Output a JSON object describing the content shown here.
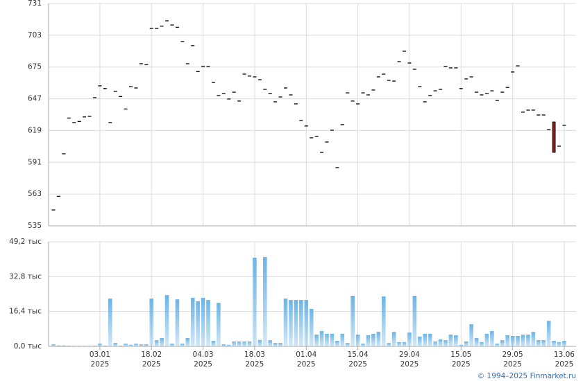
{
  "chart_data": [
    {
      "type": "dash",
      "ylim": [
        535,
        731
      ],
      "yticks": [
        535,
        563,
        591,
        619,
        647,
        675,
        703,
        731
      ],
      "grid": true,
      "series": [
        {
          "color": "#000000",
          "values": [
            549,
            561,
            598.5,
            630,
            626,
            627,
            631,
            631.5,
            648,
            658.4,
            656,
            626,
            653.5,
            649,
            638,
            657.7,
            656.5,
            677.9,
            677,
            709,
            709,
            711,
            715.7,
            712,
            710,
            697.4,
            677.9,
            693.8,
            671,
            675.4,
            675.4,
            661.4,
            649.8,
            651.6,
            646.8,
            652.8,
            645,
            668.7,
            667,
            666.3,
            663.8,
            655.3,
            651.6,
            644.3,
            648.6,
            656.5,
            650.4,
            642.5,
            627.8,
            623,
            612.6,
            613.8,
            599.7,
            608.9,
            619.3,
            586.3,
            624.2,
            652.2,
            645,
            642.5,
            652.2,
            650.4,
            654.7,
            666.3,
            668.7,
            663.2,
            662.6,
            679.7,
            688.9,
            678.5,
            673,
            657.7,
            644.3,
            649.8,
            654,
            655.3,
            675.4,
            674.2,
            674.2,
            656,
            664.5,
            666.3,
            652.8,
            650.4,
            651.6,
            654,
            645.5,
            652.8,
            657,
            670.6,
            676,
            635.2,
            637,
            637,
            632.7,
            632.7,
            619.9,
            null,
            605.2,
            623.6
          ]
        }
      ],
      "range": {
        "color": "#8b1a1a",
        "high": [
          null,
          null,
          null,
          null,
          null,
          null,
          null,
          null,
          null,
          null,
          null,
          null,
          null,
          null,
          null,
          null,
          null,
          null,
          null,
          null,
          null,
          null,
          null,
          null,
          null,
          null,
          null,
          null,
          null,
          null,
          null,
          null,
          null,
          null,
          null,
          null,
          null,
          null,
          null,
          null,
          null,
          null,
          null,
          null,
          null,
          null,
          null,
          null,
          null,
          null,
          null,
          null,
          null,
          null,
          null,
          null,
          null,
          null,
          null,
          null,
          null,
          null,
          null,
          null,
          null,
          null,
          null,
          null,
          null,
          null,
          null,
          null,
          null,
          null,
          null,
          null,
          null,
          null,
          null,
          null,
          null,
          null,
          null,
          null,
          null,
          null,
          null,
          null,
          null,
          null,
          null,
          null,
          null,
          null,
          null,
          null,
          null,
          626.6,
          null,
          null
        ],
        "low": [
          null,
          null,
          null,
          null,
          null,
          null,
          null,
          null,
          null,
          null,
          null,
          null,
          null,
          null,
          null,
          null,
          null,
          null,
          null,
          null,
          null,
          null,
          null,
          null,
          null,
          null,
          null,
          null,
          null,
          null,
          null,
          null,
          null,
          null,
          null,
          null,
          null,
          null,
          null,
          null,
          null,
          null,
          null,
          null,
          null,
          null,
          null,
          null,
          null,
          null,
          null,
          null,
          null,
          null,
          null,
          null,
          null,
          null,
          null,
          null,
          null,
          null,
          null,
          null,
          null,
          null,
          null,
          null,
          null,
          null,
          null,
          null,
          null,
          null,
          null,
          null,
          null,
          null,
          null,
          null,
          null,
          null,
          null,
          null,
          null,
          null,
          null,
          null,
          null,
          null,
          null,
          null,
          null,
          null,
          null,
          null,
          null,
          599.7,
          null,
          null
        ]
      }
    },
    {
      "type": "bar",
      "ylim": [
        0,
        49.2
      ],
      "yticks": [
        {
          "value": 0,
          "label": "0,0 тыс"
        },
        {
          "value": 16.4,
          "label": "16,4 тыс"
        },
        {
          "value": 32.8,
          "label": "32,8 тыс"
        },
        {
          "value": 49.2,
          "label": "49,2 тыс"
        }
      ],
      "grid": true,
      "color": "#6cb4e6",
      "categories": [
        null,
        null,
        null,
        null,
        null,
        null,
        null,
        null,
        null,
        [
          "03.01",
          "2025"
        ],
        null,
        null,
        null,
        null,
        null,
        null,
        null,
        null,
        null,
        [
          "18.02",
          "2025"
        ],
        null,
        null,
        null,
        null,
        null,
        null,
        null,
        null,
        null,
        [
          "04.03",
          "2025"
        ],
        null,
        null,
        null,
        null,
        null,
        null,
        null,
        null,
        null,
        [
          "18.03",
          "2025"
        ],
        null,
        null,
        null,
        null,
        null,
        null,
        null,
        null,
        null,
        [
          "01.04",
          "2025"
        ],
        null,
        null,
        null,
        null,
        null,
        null,
        null,
        null,
        null,
        [
          "15.04",
          "2025"
        ],
        null,
        null,
        null,
        null,
        null,
        null,
        null,
        null,
        null,
        [
          "29.04",
          "2025"
        ],
        null,
        null,
        null,
        null,
        null,
        null,
        null,
        null,
        null,
        [
          "15.05",
          "2025"
        ],
        null,
        null,
        null,
        null,
        null,
        null,
        null,
        null,
        null,
        [
          "29.05",
          "2025"
        ],
        null,
        null,
        null,
        null,
        null,
        null,
        null,
        null,
        null,
        [
          "13.06",
          "2025"
        ]
      ],
      "values": [
        1,
        0.4,
        0.4,
        0.3,
        0.3,
        0.3,
        0.3,
        0.3,
        0.3,
        1.3,
        0.3,
        22.5,
        1.6,
        0.3,
        1.3,
        0.7,
        1.3,
        1,
        1,
        22.5,
        2.9,
        3.9,
        24.1,
        1.3,
        22.1,
        1.3,
        3.9,
        22.8,
        21.2,
        22.8,
        21.8,
        2.6,
        20.5,
        1,
        0.7,
        2.3,
        2.3,
        2.3,
        2.3,
        41.7,
        3,
        42,
        2.9,
        1.6,
        1.6,
        22.5,
        21.8,
        21.8,
        21.8,
        21.8,
        17.6,
        5.5,
        7.2,
        5.9,
        5.9,
        2.6,
        5.9,
        1.6,
        23.8,
        5.5,
        1.3,
        5.2,
        5.9,
        6.8,
        23.5,
        1.6,
        6.8,
        2,
        2,
        6.5,
        23.8,
        4.6,
        5.9,
        5.9,
        2.3,
        3.3,
        2.9,
        5.5,
        5.2,
        0.7,
        2.3,
        10.4,
        3.9,
        2,
        5.9,
        7.2,
        1.3,
        2.9,
        5.2,
        4.9,
        4.9,
        5.5,
        5.5,
        6.8,
        2.9,
        2.9,
        12,
        2.6,
        2,
        2.6
      ]
    }
  ],
  "copyright": "© 1994–2025 Finmarket.ru"
}
